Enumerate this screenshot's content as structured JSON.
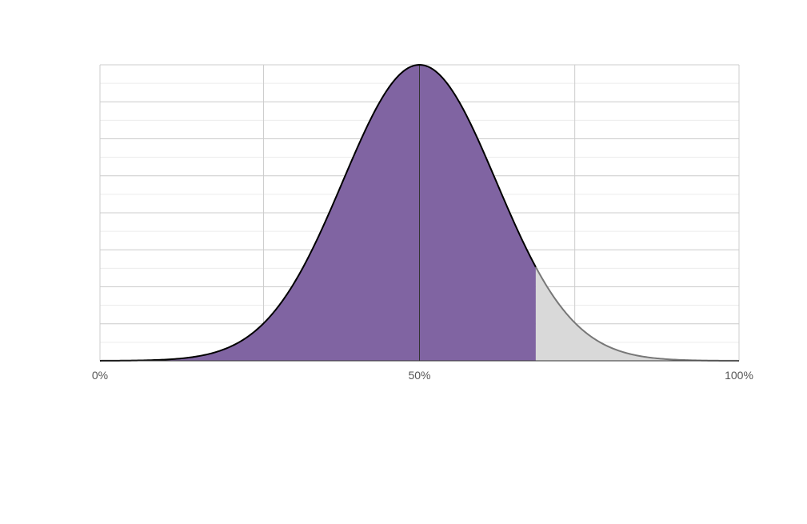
{
  "chart_data": {
    "type": "area",
    "title": "",
    "xlabel": "",
    "ylabel": "",
    "distribution": "normal",
    "mean": 50,
    "sd": 12,
    "x_range": [
      0,
      100
    ],
    "peak_density": 1,
    "highlight_until": 68.2,
    "x_ticks": [
      {
        "value": 0,
        "label": "0%"
      },
      {
        "value": 50,
        "label": "50%"
      },
      {
        "value": 100,
        "label": "100%"
      }
    ],
    "major_vertical_gridlines": [
      0,
      25.6,
      50,
      74.3,
      100
    ],
    "horizontal_gridlines": 16,
    "grid": true,
    "legend": "none",
    "colors": {
      "highlight_fill": "#8064a2",
      "tail_fill": "#d9d9d9",
      "curve_stroke": "#000000",
      "tail_stroke": "#777777",
      "grid_major": "#cccccc",
      "grid_minor": "#ececec"
    }
  }
}
